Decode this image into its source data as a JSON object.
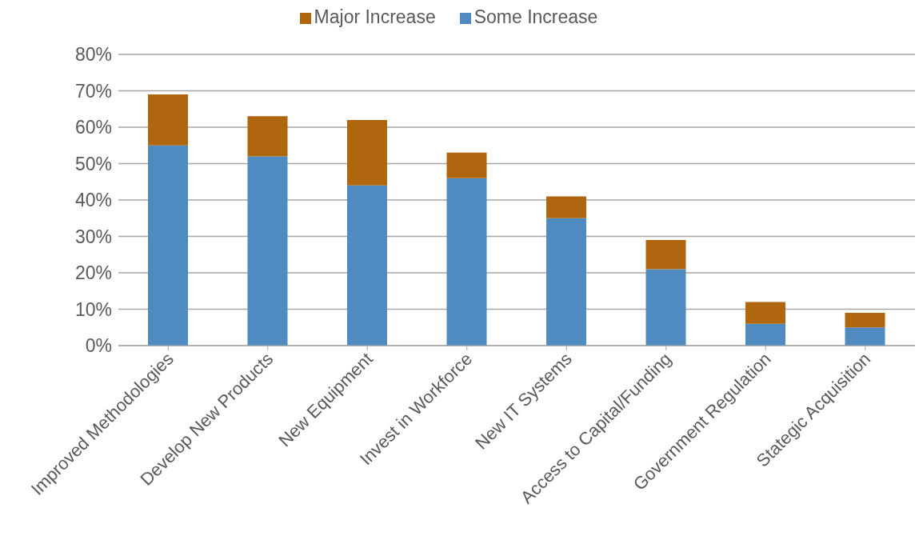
{
  "chart_data": {
    "type": "bar",
    "stacked": true,
    "categories": [
      "Improved Methodologies",
      "Develop New Products",
      "New Equipment",
      "Invest in Workforce",
      "New IT Systems",
      "Access to Capital/Funding",
      "Government Regulation",
      "Stategic Acquisition"
    ],
    "series": [
      {
        "name": "Some Increase",
        "color": "#4f8bc0",
        "values": [
          55,
          52,
          44,
          46,
          35,
          21,
          6,
          5
        ]
      },
      {
        "name": "Major Increase",
        "color": "#b0650f",
        "values": [
          14,
          11,
          18,
          7,
          6,
          8,
          6,
          4
        ]
      }
    ],
    "ylim": [
      0,
      80
    ],
    "yticks": [
      {
        "value": 0,
        "label": "0%"
      },
      {
        "value": 10,
        "label": "10%"
      },
      {
        "value": 20,
        "label": "20%"
      },
      {
        "value": 30,
        "label": "30%"
      },
      {
        "value": 40,
        "label": "40%"
      },
      {
        "value": 50,
        "label": "50%"
      },
      {
        "value": 60,
        "label": "60%"
      },
      {
        "value": 70,
        "label": "70%"
      },
      {
        "value": 80,
        "label": "80%"
      }
    ],
    "grid": "y",
    "legend": "top"
  }
}
